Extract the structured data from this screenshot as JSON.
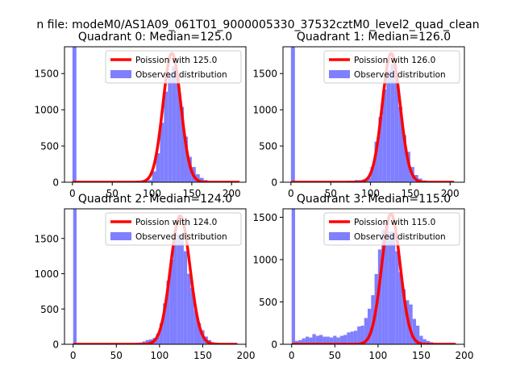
{
  "figure": {
    "suptitle": "n file: modeM0/AS1A09_061T01_9000005330_37532cztM0_level2_quad_clean"
  },
  "colors": {
    "hist": "#7f7fff",
    "poisson": "#ff0000",
    "background": "#ffffff"
  },
  "chart_data": [
    {
      "type": "bar",
      "title": "Quadrant 0: Median=125.0",
      "xlim": [
        -10,
        218
      ],
      "ylim": [
        0,
        1870
      ],
      "xticks": [
        0,
        50,
        100,
        150,
        200
      ],
      "yticks": [
        0,
        500,
        1000,
        1500
      ],
      "legend_position": "top-right",
      "series": [
        {
          "name": "Poission with 125.0",
          "kind": "line",
          "mean": 125.0,
          "peak": 1780,
          "sigma": 11.2,
          "x_range": [
            0,
            210
          ]
        },
        {
          "name": "Observed distribution",
          "kind": "histogram",
          "bin_width": 5,
          "bins": [
            [
              0,
              1870
            ],
            [
              80,
              20
            ],
            [
              85,
              20
            ],
            [
              90,
              20
            ],
            [
              95,
              30
            ],
            [
              100,
              150
            ],
            [
              105,
              400
            ],
            [
              110,
              820
            ],
            [
              115,
              1250
            ],
            [
              120,
              1500
            ],
            [
              125,
              1600
            ],
            [
              130,
              1450
            ],
            [
              135,
              1040
            ],
            [
              140,
              630
            ],
            [
              145,
              350
            ],
            [
              150,
              210
            ],
            [
              155,
              110
            ],
            [
              160,
              60
            ],
            [
              165,
              30
            ],
            [
              170,
              15
            ],
            [
              175,
              10
            ]
          ]
        }
      ]
    },
    {
      "type": "bar",
      "title": "Quadrant 1: Median=126.0",
      "xlim": [
        -10,
        218
      ],
      "ylim": [
        0,
        1870
      ],
      "xticks": [
        0,
        50,
        100,
        150,
        200
      ],
      "yticks": [
        0,
        500,
        1000,
        1500
      ],
      "legend_position": "top-right",
      "series": [
        {
          "name": "Poission with 126.0",
          "kind": "line",
          "mean": 126.0,
          "peak": 1780,
          "sigma": 11.2,
          "x_range": [
            0,
            205
          ]
        },
        {
          "name": "Observed distribution",
          "kind": "histogram",
          "bin_width": 5,
          "bins": [
            [
              0,
              1870
            ],
            [
              70,
              20
            ],
            [
              75,
              20
            ],
            [
              80,
              30
            ],
            [
              85,
              30
            ],
            [
              90,
              40
            ],
            [
              95,
              60
            ],
            [
              100,
              210
            ],
            [
              105,
              560
            ],
            [
              110,
              900
            ],
            [
              115,
              1280
            ],
            [
              120,
              1540
            ],
            [
              125,
              1630
            ],
            [
              130,
              1480
            ],
            [
              135,
              1040
            ],
            [
              140,
              650
            ],
            [
              145,
              420
            ],
            [
              150,
              210
            ],
            [
              155,
              100
            ],
            [
              160,
              50
            ],
            [
              165,
              25
            ],
            [
              170,
              12
            ]
          ]
        }
      ]
    },
    {
      "type": "bar",
      "title": "Quadrant 2: Median=124.0",
      "xlim": [
        -10,
        200
      ],
      "ylim": [
        0,
        1920
      ],
      "xticks": [
        0,
        50,
        100,
        150,
        200
      ],
      "yticks": [
        0,
        500,
        1000,
        1500
      ],
      "legend_position": "top-right",
      "series": [
        {
          "name": "Poission with 124.0",
          "kind": "line",
          "mean": 124.0,
          "peak": 1820,
          "sigma": 11.2,
          "x_range": [
            0,
            190
          ]
        },
        {
          "name": "Observed distribution",
          "kind": "histogram",
          "bin_width": 4,
          "bins": [
            [
              0,
              1920
            ],
            [
              72,
              20
            ],
            [
              76,
              25
            ],
            [
              80,
              40
            ],
            [
              84,
              60
            ],
            [
              88,
              70
            ],
            [
              92,
              90
            ],
            [
              96,
              150
            ],
            [
              100,
              300
            ],
            [
              104,
              580
            ],
            [
              108,
              900
            ],
            [
              112,
              1200
            ],
            [
              116,
              1500
            ],
            [
              120,
              1560
            ],
            [
              124,
              1500
            ],
            [
              128,
              1320
            ],
            [
              132,
              1000
            ],
            [
              136,
              800
            ],
            [
              140,
              480
            ],
            [
              144,
              300
            ],
            [
              148,
              200
            ],
            [
              152,
              110
            ],
            [
              156,
              60
            ],
            [
              160,
              30
            ],
            [
              164,
              20
            ],
            [
              168,
              10
            ]
          ]
        }
      ]
    },
    {
      "type": "bar",
      "title": "Quadrant 3: Median=115.0",
      "xlim": [
        -10,
        200
      ],
      "ylim": [
        0,
        1600
      ],
      "xticks": [
        0,
        50,
        100,
        150,
        200
      ],
      "yticks": [
        0,
        500,
        1000,
        1500
      ],
      "legend_position": "top-right",
      "series": [
        {
          "name": "Poission with 115.0",
          "kind": "line",
          "mean": 115.0,
          "peak": 1540,
          "sigma": 10.7,
          "x_range": [
            0,
            190
          ]
        },
        {
          "name": "Observed distribution",
          "kind": "histogram",
          "bin_width": 4,
          "bins": [
            [
              0,
              1600
            ],
            [
              4,
              40
            ],
            [
              8,
              50
            ],
            [
              12,
              70
            ],
            [
              16,
              90
            ],
            [
              20,
              80
            ],
            [
              24,
              120
            ],
            [
              28,
              100
            ],
            [
              32,
              110
            ],
            [
              36,
              90
            ],
            [
              40,
              90
            ],
            [
              44,
              80
            ],
            [
              48,
              100
            ],
            [
              52,
              80
            ],
            [
              56,
              100
            ],
            [
              60,
              110
            ],
            [
              64,
              140
            ],
            [
              68,
              150
            ],
            [
              72,
              160
            ],
            [
              76,
              210
            ],
            [
              80,
              220
            ],
            [
              84,
              310
            ],
            [
              88,
              420
            ],
            [
              92,
              580
            ],
            [
              96,
              830
            ],
            [
              100,
              1120
            ],
            [
              104,
              1350
            ],
            [
              108,
              1420
            ],
            [
              112,
              1330
            ],
            [
              116,
              1330
            ],
            [
              120,
              1100
            ],
            [
              124,
              850
            ],
            [
              128,
              650
            ],
            [
              132,
              520
            ],
            [
              136,
              470
            ],
            [
              140,
              300
            ],
            [
              144,
              220
            ],
            [
              148,
              100
            ],
            [
              152,
              60
            ],
            [
              156,
              40
            ],
            [
              160,
              25
            ],
            [
              164,
              15
            ],
            [
              168,
              10
            ]
          ]
        }
      ]
    }
  ]
}
